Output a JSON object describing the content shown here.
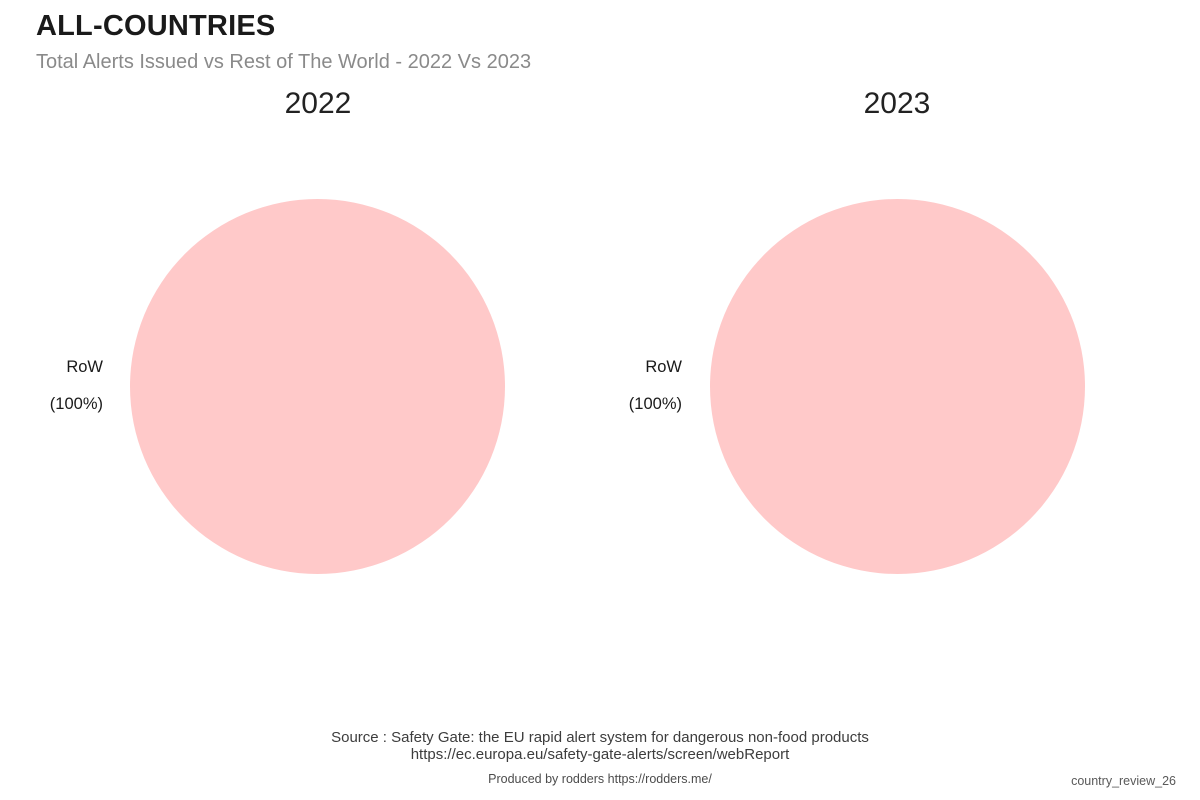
{
  "header": {
    "title": "ALL-COUNTRIES",
    "subtitle": "Total Alerts Issued vs Rest of The World - 2022 Vs 2023"
  },
  "colors": {
    "pie_slice": "#ffc9c9",
    "title_text": "#1a1a1a",
    "subtitle_text": "#8a8a8a",
    "footer_text": "#3d3d3d"
  },
  "chart_data": [
    {
      "type": "pie",
      "title": "2022",
      "labels": [
        "RoW"
      ],
      "values": [
        100
      ],
      "slice_colors": [
        "#ffc9c9"
      ],
      "label_display": "RoW",
      "percent_display": "(100%)",
      "legend_position": "none",
      "labels_position": "outside-left"
    },
    {
      "type": "pie",
      "title": "2023",
      "labels": [
        "RoW"
      ],
      "values": [
        100
      ],
      "slice_colors": [
        "#ffc9c9"
      ],
      "label_display": "RoW",
      "percent_display": "(100%)",
      "legend_position": "none",
      "labels_position": "outside-left"
    }
  ],
  "footer": {
    "source_line1": "Source : Safety Gate: the EU rapid alert system for dangerous non-food products",
    "source_line2": "https://ec.europa.eu/safety-gate-alerts/screen/webReport",
    "produced_by": "Produced by rodders https://rodders.me/",
    "watermark": "country_review_26"
  }
}
